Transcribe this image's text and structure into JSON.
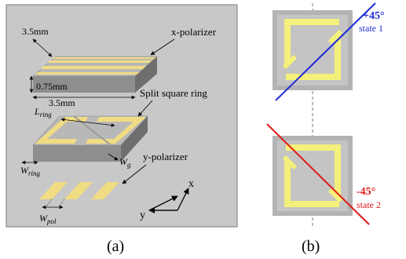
{
  "panel_a": {
    "caption": "(a)",
    "dim_top": "3.5mm",
    "dim_thickness": "0.75mm",
    "dim_bottom": "3.5mm",
    "label_x_polarizer": "x-polarizer",
    "label_split_ring": "Split square ring",
    "label_y_polarizer": "y-polarizer",
    "sym_L": "L",
    "sym_L_sub": "ring",
    "sym_Wring": "W",
    "sym_Wring_sub": "ring",
    "sym_Wg": "W",
    "sym_Wg_sub": "g",
    "sym_Wpol": "W",
    "sym_Wpol_sub": "pol",
    "axis_x": "x",
    "axis_y": "y"
  },
  "panel_b": {
    "caption": "(b)",
    "state1_angle": "+45°",
    "state1_label": "state 1",
    "state2_angle": "-45°",
    "state2_label": "state 2"
  },
  "colors": {
    "background_a": "#c8c8c8",
    "metal": "#f0dc82",
    "substrate_top": "#b5b5b5",
    "substrate_side": "#8a8a8a",
    "ring_yellow": "#f5f07a",
    "state1": "#1f2bd6",
    "state2": "#e01818"
  }
}
